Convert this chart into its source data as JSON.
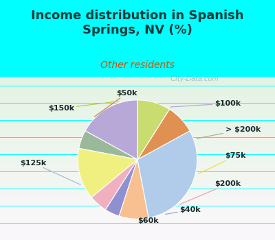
{
  "title": "Income distribution in Spanish\nSprings, NV (%)",
  "subtitle": "Other residents",
  "title_color": "#1a3a3a",
  "subtitle_color": "#cc5500",
  "bg_color": "#00ffff",
  "chart_bg_top": "#e8f5ee",
  "chart_bg_bottom": "#c8e8d8",
  "watermark": "  City-Data.com",
  "labels": [
    "$100k",
    "> $200k",
    "$75k",
    "$200k",
    "$40k",
    "$60k",
    "$125k",
    "$50k",
    "$150k"
  ],
  "values": [
    17,
    5,
    14,
    5,
    4,
    8,
    30,
    8,
    9
  ],
  "colors": [
    "#b8a8d8",
    "#9ab89a",
    "#f0f080",
    "#f0b0c0",
    "#9090d0",
    "#f8c090",
    "#b0ccea",
    "#e09050",
    "#c8dc70"
  ],
  "line_colors": [
    "#b8a8d8",
    "#9ab89a",
    "#e8e050",
    "#f0a0b0",
    "#a0a0e0",
    "#e09050",
    "#a0bcdc",
    "#d08040",
    "#b8cc50"
  ],
  "startangle": 90,
  "label_fontsize": 8,
  "title_fontsize": 13,
  "subtitle_fontsize": 10
}
